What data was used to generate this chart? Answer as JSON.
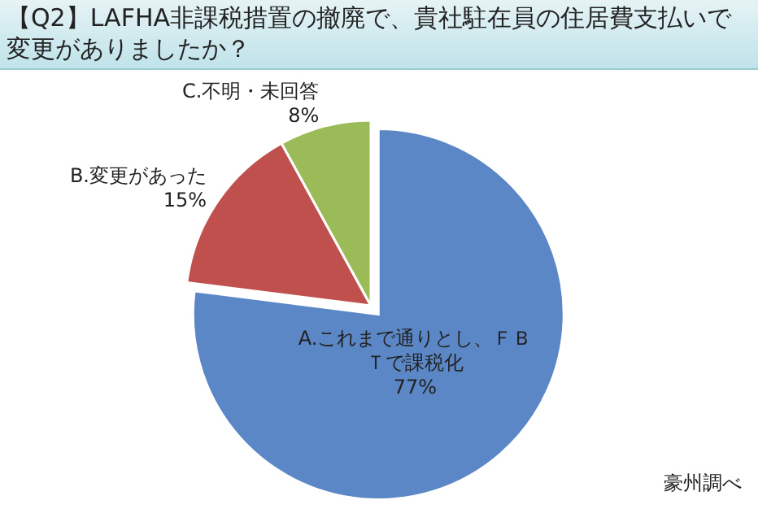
{
  "chart_data": {
    "type": "pie",
    "title": "【Q2】LAFHA非課税措置の撤廃で、貴社駐在員の住居費支払いで変更がありましたか？",
    "categories": [
      "A.これまで通りとし、ＦＢＴで課税化",
      "B.変更があった",
      "C.不明・未回答"
    ],
    "values": [
      77,
      15,
      8
    ],
    "value_labels": [
      "77%",
      "15%",
      "8%"
    ],
    "colors": [
      "#5b87c6",
      "#c0504d",
      "#9bbb59"
    ],
    "annotations": [
      "豪州調べ"
    ]
  }
}
